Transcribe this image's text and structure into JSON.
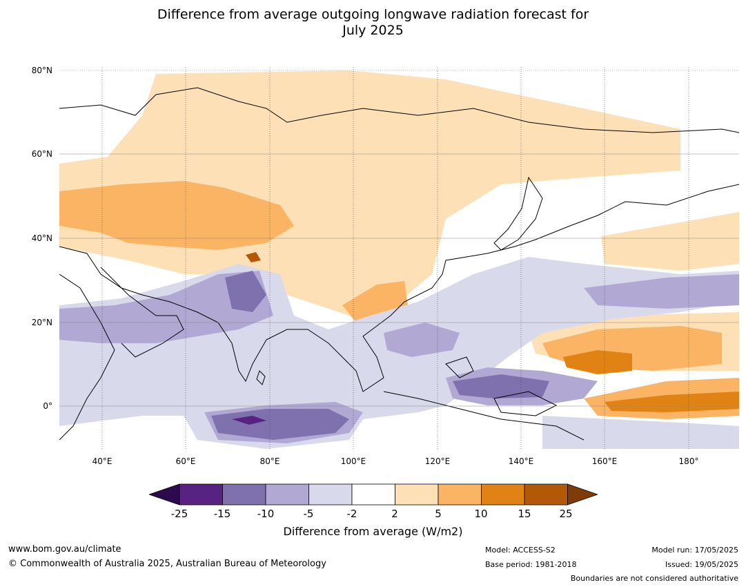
{
  "title_line1": "Difference from average outgoing longwave radiation forecast for",
  "title_line2": "July 2025",
  "lat_labels": [
    "80°N",
    "60°N",
    "40°N",
    "20°N",
    "0°"
  ],
  "lon_labels": [
    "40°E",
    "60°E",
    "80°E",
    "100°E",
    "120°E",
    "140°E",
    "160°E",
    "180°"
  ],
  "colorbar": {
    "ticks": [
      "-25",
      "-15",
      "-10",
      "-5",
      "-2",
      "2",
      "5",
      "10",
      "15",
      "25"
    ],
    "colors": [
      "#2d0a4e",
      "#582283",
      "#7f70ae",
      "#b1a9d3",
      "#d9d9ec",
      "#ffffff",
      "#fee0b6",
      "#fbb463",
      "#e08214",
      "#b35806",
      "#7f3b08"
    ],
    "label": "Difference from average (W/m2)"
  },
  "footer": {
    "url": "www.bom.gov.au/climate",
    "copyright": "© Commonwealth of Australia 2025, Australian Bureau of Meteorology",
    "model": "Model: ACCESS-S2",
    "base_period": "Base period: 1981-2018",
    "model_run": "Model run: 17/05/2025",
    "issued": "Issued: 19/05/2025",
    "disclaimer": "Boundaries are not considered authoritative"
  }
}
